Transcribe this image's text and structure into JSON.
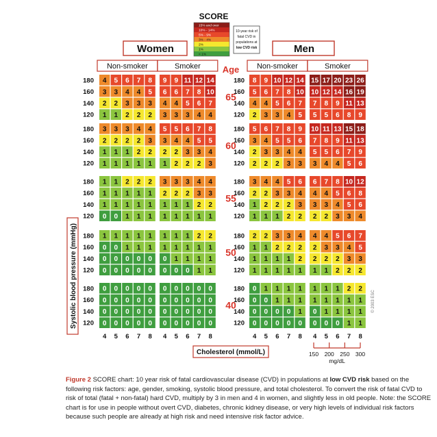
{
  "chart_data": {
    "type": "heatmap",
    "title": "SCORE",
    "legend": {
      "items": [
        "15% and over",
        "10% - 14%",
        "5% - 9%",
        "3% - 4%",
        "2%",
        "1%",
        "< 1%"
      ],
      "colors": [
        "#8c1d18",
        "#c5271f",
        "#e7482b",
        "#ee8a2b",
        "#f5e72f",
        "#8bc53f",
        "#3f9e3f"
      ],
      "note": [
        "10-year risk of",
        "fatal CVD in",
        "populations at",
        "low CVD risk"
      ]
    },
    "sex_labels": [
      "Women",
      "Men"
    ],
    "smoking_labels": [
      "Non-smoker",
      "Smoker",
      "Non-smoker",
      "Smoker"
    ],
    "age_title": "Age",
    "ages": [
      "65",
      "60",
      "55",
      "50",
      "40"
    ],
    "sbp_ticks": [
      "180",
      "160",
      "140",
      "120"
    ],
    "chol_ticks": [
      "4",
      "5",
      "6",
      "7",
      "8"
    ],
    "ylabel": "Systolic blood pressure (mmHg)",
    "xlabel": "Cholesterol (mmol/L)",
    "mgdl_ticks": [
      "150",
      "200",
      "250",
      "300"
    ],
    "mgdl_unit": "mg/dL",
    "copyright": "© 2003 ESC",
    "panels": [
      {
        "sex": "Women",
        "smoking": "Non-smoker",
        "age": "65",
        "values": [
          [
            4,
            5,
            6,
            7,
            8
          ],
          [
            3,
            3,
            4,
            4,
            5
          ],
          [
            2,
            2,
            3,
            3,
            3
          ],
          [
            1,
            1,
            2,
            2,
            2
          ]
        ]
      },
      {
        "sex": "Women",
        "smoking": "Smoker",
        "age": "65",
        "values": [
          [
            9,
            9,
            11,
            12,
            14
          ],
          [
            6,
            6,
            7,
            8,
            10
          ],
          [
            4,
            4,
            5,
            6,
            7
          ],
          [
            3,
            3,
            3,
            4,
            4
          ]
        ]
      },
      {
        "sex": "Men",
        "smoking": "Non-smoker",
        "age": "65",
        "values": [
          [
            8,
            9,
            10,
            12,
            14
          ],
          [
            5,
            6,
            7,
            8,
            10
          ],
          [
            4,
            4,
            5,
            6,
            7
          ],
          [
            2,
            3,
            3,
            4,
            5
          ]
        ]
      },
      {
        "sex": "Men",
        "smoking": "Smoker",
        "age": "65",
        "values": [
          [
            15,
            17,
            20,
            23,
            26
          ],
          [
            10,
            12,
            14,
            16,
            19
          ],
          [
            7,
            8,
            9,
            11,
            13
          ],
          [
            5,
            5,
            6,
            8,
            9
          ]
        ]
      },
      {
        "sex": "Women",
        "smoking": "Non-smoker",
        "age": "60",
        "values": [
          [
            3,
            3,
            3,
            4,
            4
          ],
          [
            2,
            2,
            2,
            2,
            3
          ],
          [
            1,
            1,
            1,
            2,
            2
          ],
          [
            1,
            1,
            1,
            1,
            1
          ]
        ]
      },
      {
        "sex": "Women",
        "smoking": "Smoker",
        "age": "60",
        "values": [
          [
            5,
            5,
            6,
            7,
            8
          ],
          [
            3,
            4,
            4,
            5,
            5
          ],
          [
            2,
            2,
            3,
            3,
            4
          ],
          [
            1,
            2,
            2,
            2,
            3
          ]
        ]
      },
      {
        "sex": "Men",
        "smoking": "Non-smoker",
        "age": "60",
        "values": [
          [
            5,
            6,
            7,
            8,
            9
          ],
          [
            3,
            4,
            5,
            5,
            6
          ],
          [
            2,
            3,
            3,
            4,
            4
          ],
          [
            2,
            2,
            2,
            3,
            3
          ]
        ]
      },
      {
        "sex": "Men",
        "smoking": "Smoker",
        "age": "60",
        "values": [
          [
            10,
            11,
            13,
            15,
            18
          ],
          [
            7,
            8,
            9,
            11,
            13
          ],
          [
            5,
            5,
            6,
            7,
            9
          ],
          [
            3,
            4,
            4,
            5,
            6
          ]
        ]
      },
      {
        "sex": "Women",
        "smoking": "Non-smoker",
        "age": "55",
        "values": [
          [
            1,
            1,
            2,
            2,
            2
          ],
          [
            1,
            1,
            1,
            1,
            1
          ],
          [
            1,
            1,
            1,
            1,
            1
          ],
          [
            0,
            0,
            1,
            1,
            1
          ]
        ]
      },
      {
        "sex": "Women",
        "smoking": "Smoker",
        "age": "55",
        "values": [
          [
            3,
            3,
            3,
            4,
            4
          ],
          [
            2,
            2,
            2,
            3,
            3
          ],
          [
            1,
            1,
            1,
            2,
            2
          ],
          [
            1,
            1,
            1,
            1,
            1
          ]
        ]
      },
      {
        "sex": "Men",
        "smoking": "Non-smoker",
        "age": "55",
        "values": [
          [
            3,
            4,
            4,
            5,
            6
          ],
          [
            2,
            2,
            3,
            3,
            4
          ],
          [
            1,
            2,
            2,
            2,
            3
          ],
          [
            1,
            1,
            1,
            2,
            2
          ]
        ]
      },
      {
        "sex": "Men",
        "smoking": "Smoker",
        "age": "55",
        "values": [
          [
            6,
            7,
            8,
            10,
            12
          ],
          [
            4,
            4,
            5,
            6,
            8
          ],
          [
            3,
            3,
            4,
            5,
            6
          ],
          [
            2,
            2,
            3,
            3,
            4
          ]
        ]
      },
      {
        "sex": "Women",
        "smoking": "Non-smoker",
        "age": "50",
        "values": [
          [
            1,
            1,
            1,
            1,
            1
          ],
          [
            0,
            0,
            1,
            1,
            1
          ],
          [
            0,
            0,
            0,
            0,
            0
          ],
          [
            0,
            0,
            0,
            0,
            0
          ]
        ]
      },
      {
        "sex": "Women",
        "smoking": "Smoker",
        "age": "50",
        "values": [
          [
            1,
            1,
            1,
            2,
            2
          ],
          [
            1,
            1,
            1,
            1,
            1
          ],
          [
            0,
            1,
            1,
            1,
            1
          ],
          [
            0,
            0,
            0,
            1,
            1
          ]
        ]
      },
      {
        "sex": "Men",
        "smoking": "Non-smoker",
        "age": "50",
        "values": [
          [
            2,
            2,
            3,
            3,
            4
          ],
          [
            1,
            1,
            2,
            2,
            2
          ],
          [
            1,
            1,
            1,
            1,
            2
          ],
          [
            1,
            1,
            1,
            1,
            1
          ]
        ]
      },
      {
        "sex": "Men",
        "smoking": "Smoker",
        "age": "50",
        "values": [
          [
            4,
            4,
            5,
            6,
            7
          ],
          [
            2,
            3,
            3,
            4,
            5
          ],
          [
            2,
            2,
            2,
            3,
            3
          ],
          [
            1,
            1,
            2,
            2,
            2
          ]
        ]
      },
      {
        "sex": "Women",
        "smoking": "Non-smoker",
        "age": "40",
        "values": [
          [
            0,
            0,
            0,
            0,
            0
          ],
          [
            0,
            0,
            0,
            0,
            0
          ],
          [
            0,
            0,
            0,
            0,
            0
          ],
          [
            0,
            0,
            0,
            0,
            0
          ]
        ]
      },
      {
        "sex": "Women",
        "smoking": "Smoker",
        "age": "40",
        "values": [
          [
            0,
            0,
            0,
            0,
            0
          ],
          [
            0,
            0,
            0,
            0,
            0
          ],
          [
            0,
            0,
            0,
            0,
            0
          ],
          [
            0,
            0,
            0,
            0,
            0
          ]
        ]
      },
      {
        "sex": "Men",
        "smoking": "Non-smoker",
        "age": "40",
        "values": [
          [
            0,
            1,
            1,
            1,
            1
          ],
          [
            0,
            0,
            1,
            1,
            1
          ],
          [
            0,
            0,
            0,
            0,
            1
          ],
          [
            0,
            0,
            0,
            0,
            0
          ]
        ]
      },
      {
        "sex": "Men",
        "smoking": "Smoker",
        "age": "40",
        "values": [
          [
            1,
            1,
            1,
            2,
            2
          ],
          [
            1,
            1,
            1,
            1,
            1
          ],
          [
            0,
            1,
            1,
            1,
            1
          ],
          [
            0,
            0,
            0,
            1,
            1
          ]
        ]
      }
    ]
  },
  "caption": {
    "figure_label": "Figure 2",
    "text_1": " SCORE chart: 10 year risk of fatal cardiovascular disease (CVD) in populations at ",
    "bold": "low CVD risk",
    "text_2": " based on the following risk factors: age, gender, smoking, systolic blood pressure, and total cholesterol. To convert the risk of fatal CVD to risk of total (fatal + non-fatal) hard CVD, multiply by 3 in men and 4 in women, and slightly less in old people. Note: the SCORE chart is for use in people without overt CVD, diabetes, chronic kidney disease, or very high levels of individual risk factors because such people are already at high risk and need intensive risk factor advice."
  }
}
